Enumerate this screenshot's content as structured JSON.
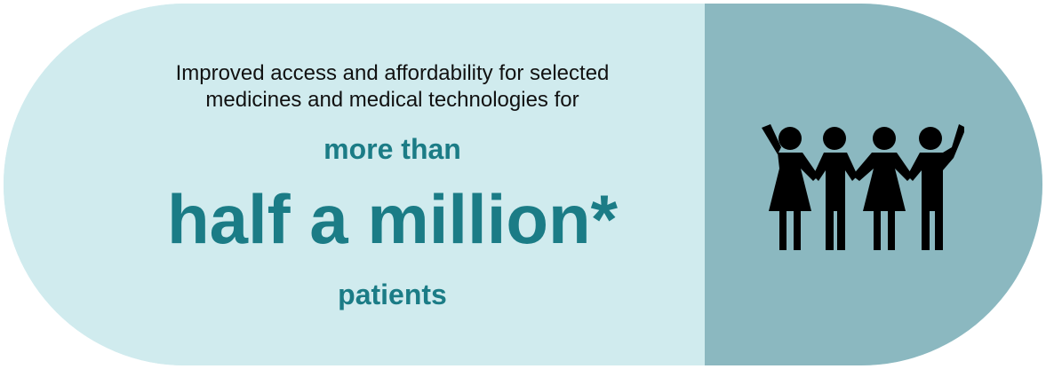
{
  "infographic": {
    "intro_line_1": "Improved access and affordability for selected",
    "intro_line_2": "medicines and medical technologies for",
    "emphasis_small": "more than",
    "headline": "half a million*",
    "emphasis_after": "patients"
  },
  "colors": {
    "left_panel": "#d0ebee",
    "right_panel": "#8bb8c0",
    "accent_text": "#1b7c86",
    "body_text": "#111111",
    "icon": "#000000"
  },
  "icons": {
    "people": "group-of-people-holding-hands-icon"
  }
}
